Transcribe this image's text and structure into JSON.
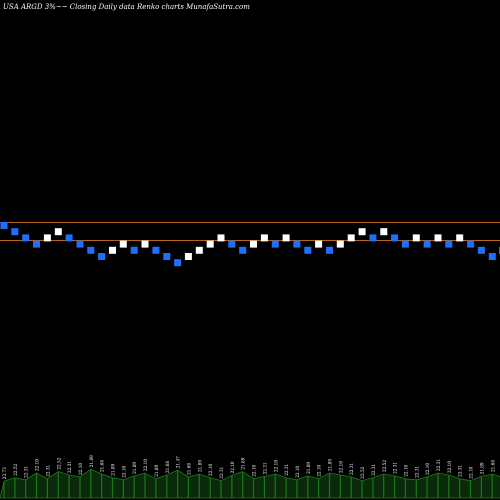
{
  "chart_data": {
    "type": "renko",
    "title": "USA ARGD 3%~~ Closing Daily data  Renko  charts MunafaSutra.com",
    "colors": {
      "background": "#000000",
      "up_brick": "#ffffff",
      "down_brick": "#1f6fff",
      "reference_line": "#b5651d",
      "volume_fill": "#0b2a0b",
      "volume_stroke": "#1a7a1a",
      "volume_last": "#2fd02f"
    },
    "reference_lines": [
      22.73,
      22.07
    ],
    "bricks": [
      {
        "dir": "down",
        "value": 22.73
      },
      {
        "dir": "down",
        "value": 22.52
      },
      {
        "dir": "down",
        "value": 22.31
      },
      {
        "dir": "down",
        "value": 22.1
      },
      {
        "dir": "up",
        "value": 22.31
      },
      {
        "dir": "up",
        "value": 22.52
      },
      {
        "dir": "down",
        "value": 22.31
      },
      {
        "dir": "down",
        "value": 22.1
      },
      {
        "dir": "down",
        "value": 21.89
      },
      {
        "dir": "down",
        "value": 21.68
      },
      {
        "dir": "up",
        "value": 21.89
      },
      {
        "dir": "up",
        "value": 22.1
      },
      {
        "dir": "down",
        "value": 21.89
      },
      {
        "dir": "up",
        "value": 22.1
      },
      {
        "dir": "down",
        "value": 21.89
      },
      {
        "dir": "down",
        "value": 21.68
      },
      {
        "dir": "down",
        "value": 21.47
      },
      {
        "dir": "up",
        "value": 21.68
      },
      {
        "dir": "up",
        "value": 21.89
      },
      {
        "dir": "up",
        "value": 22.1
      },
      {
        "dir": "up",
        "value": 22.31
      },
      {
        "dir": "down",
        "value": 22.1
      },
      {
        "dir": "down",
        "value": 21.89
      },
      {
        "dir": "up",
        "value": 22.1
      },
      {
        "dir": "up",
        "value": 22.31
      },
      {
        "dir": "down",
        "value": 22.1
      },
      {
        "dir": "up",
        "value": 22.31
      },
      {
        "dir": "down",
        "value": 22.1
      },
      {
        "dir": "down",
        "value": 21.89
      },
      {
        "dir": "up",
        "value": 22.1
      },
      {
        "dir": "down",
        "value": 21.89
      },
      {
        "dir": "up",
        "value": 22.1
      },
      {
        "dir": "up",
        "value": 22.31
      },
      {
        "dir": "up",
        "value": 22.52
      },
      {
        "dir": "down",
        "value": 22.31
      },
      {
        "dir": "up",
        "value": 22.52
      },
      {
        "dir": "down",
        "value": 22.31
      },
      {
        "dir": "down",
        "value": 22.1
      },
      {
        "dir": "up",
        "value": 22.31
      },
      {
        "dir": "down",
        "value": 22.1
      },
      {
        "dir": "up",
        "value": 22.31
      },
      {
        "dir": "down",
        "value": 22.1
      },
      {
        "dir": "up",
        "value": 22.31
      },
      {
        "dir": "down",
        "value": 22.1
      },
      {
        "dir": "down",
        "value": 21.89
      },
      {
        "dir": "down",
        "value": 21.68
      },
      {
        "dir": "up",
        "value": 21.89
      },
      {
        "dir": "up",
        "value": 22.1
      },
      {
        "dir": "up",
        "value": 22.31
      }
    ],
    "volume_labels": [
      "22.73",
      "22.52",
      "22.31",
      "22.10",
      "22.31",
      "22.52",
      "22.31",
      "22.10",
      "21.89",
      "21.68",
      "21.89",
      "22.10",
      "21.89",
      "22.10",
      "21.89",
      "21.68",
      "21.47",
      "21.68",
      "21.89",
      "22.10",
      "22.31",
      "22.10",
      "21.89",
      "22.10",
      "22.31",
      "22.10",
      "22.31",
      "22.10",
      "21.89",
      "22.10",
      "21.89",
      "22.10",
      "22.31",
      "22.52",
      "22.31",
      "22.52",
      "22.31",
      "22.10",
      "22.31",
      "22.10",
      "22.31",
      "22.10",
      "22.31",
      "22.10",
      "21.89",
      "21.68",
      "21.89",
      "22.10",
      "22.31"
    ],
    "volume": [
      0.35,
      0.42,
      0.38,
      0.52,
      0.4,
      0.55,
      0.48,
      0.44,
      0.6,
      0.5,
      0.42,
      0.38,
      0.46,
      0.52,
      0.4,
      0.48,
      0.58,
      0.44,
      0.5,
      0.42,
      0.36,
      0.47,
      0.55,
      0.4,
      0.45,
      0.5,
      0.42,
      0.38,
      0.46,
      0.4,
      0.52,
      0.48,
      0.44,
      0.36,
      0.42,
      0.5,
      0.46,
      0.4,
      0.38,
      0.44,
      0.52,
      0.48,
      0.4,
      0.36,
      0.45,
      0.5,
      0.42,
      0.38,
      0.75
    ]
  }
}
